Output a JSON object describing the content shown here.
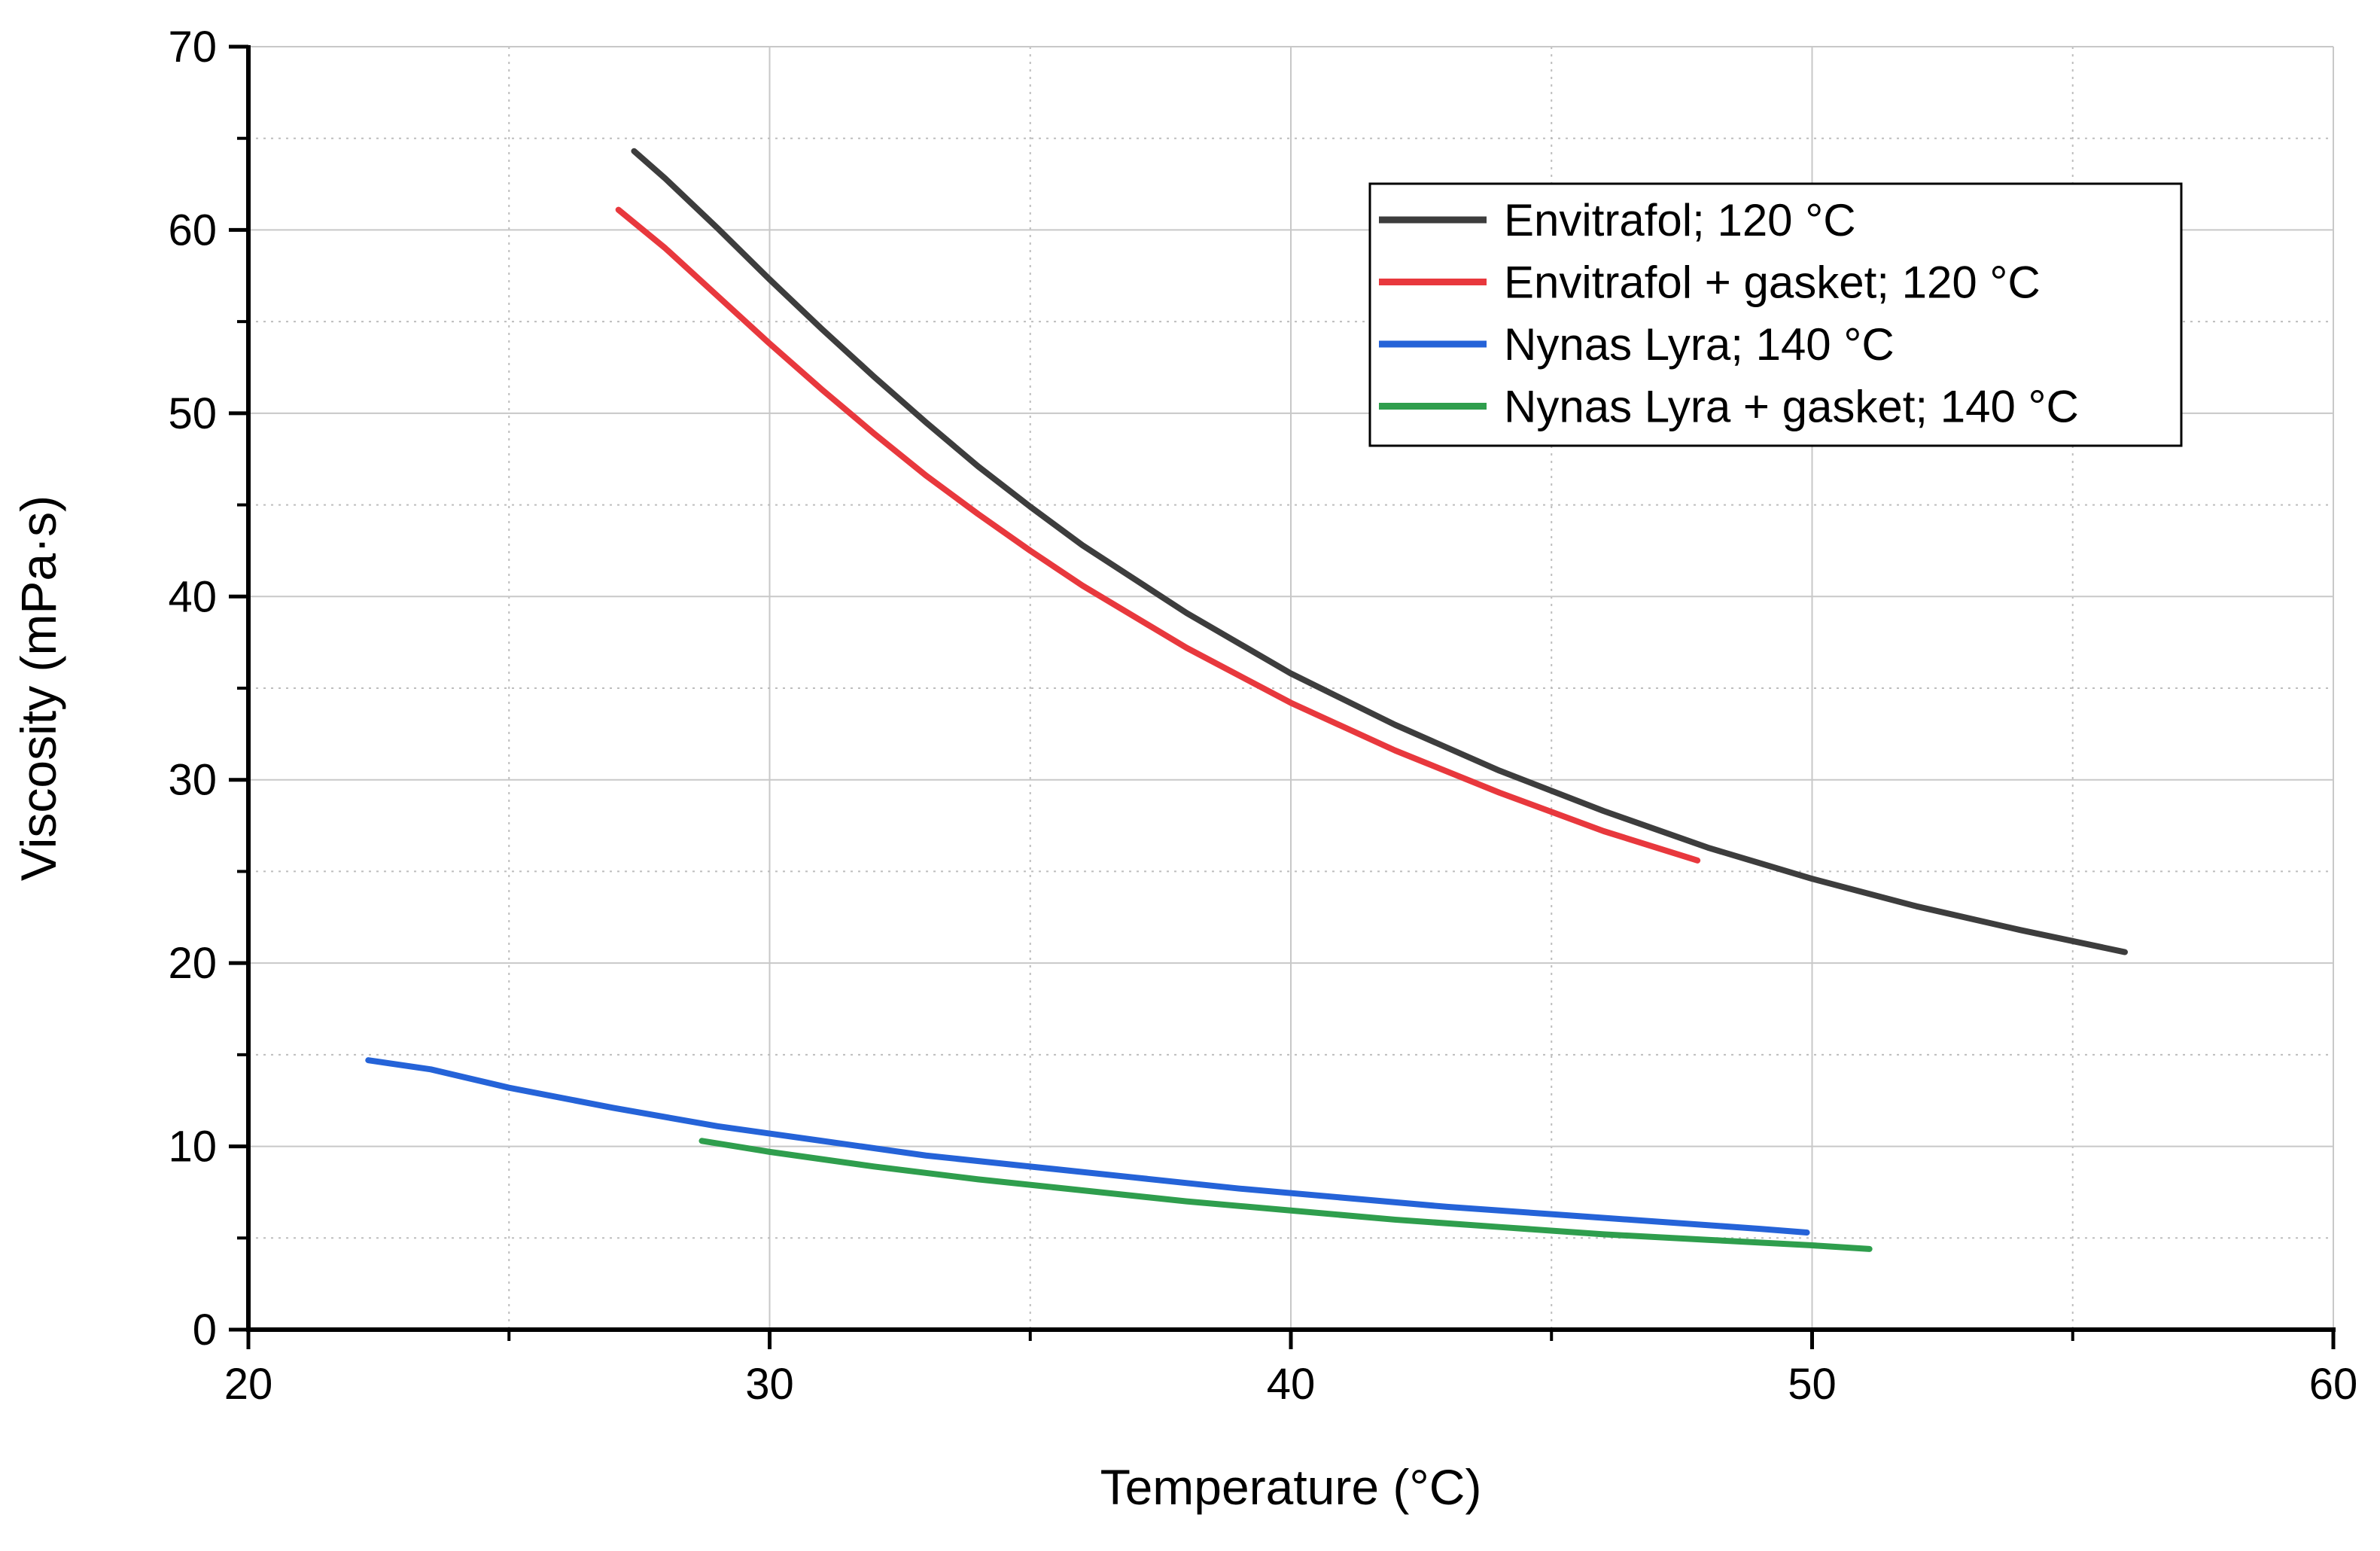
{
  "chart_data": {
    "type": "line",
    "title": "",
    "xlabel": "Temperature (°C)",
    "ylabel": "Viscosity (mPa·s)",
    "xlim": [
      20,
      60
    ],
    "ylim": [
      0,
      70
    ],
    "x_major_ticks": [
      20,
      30,
      40,
      50,
      60
    ],
    "x_minor_ticks": [
      25,
      35,
      45,
      55
    ],
    "y_major_ticks": [
      0,
      10,
      20,
      30,
      40,
      50,
      60,
      70
    ],
    "y_minor_ticks": [
      5,
      15,
      25,
      35,
      45,
      55,
      65
    ],
    "x_tick_labels": [
      "20",
      "30",
      "40",
      "50",
      "60"
    ],
    "y_tick_labels": [
      "0",
      "10",
      "20",
      "30",
      "40",
      "50",
      "60",
      "70"
    ],
    "grid": true,
    "legend_position": "top-right",
    "series": [
      {
        "name": "Envitrafol; 120 °C",
        "color": "#3d3d3d",
        "x": [
          27.4,
          28,
          29,
          30,
          31,
          32,
          33,
          34,
          35,
          36,
          38,
          40,
          42,
          44,
          46,
          48,
          50,
          52,
          54,
          56
        ],
        "y": [
          64.3,
          62.8,
          60.1,
          57.3,
          54.6,
          52.0,
          49.5,
          47.1,
          44.9,
          42.8,
          39.1,
          35.8,
          33.0,
          30.5,
          28.3,
          26.3,
          24.6,
          23.1,
          21.8,
          20.6
        ]
      },
      {
        "name": "Envitrafol + gasket; 120 °C",
        "color": "#e8383d",
        "x": [
          27.1,
          28,
          29,
          30,
          31,
          32,
          33,
          34,
          35,
          36,
          38,
          40,
          42,
          44,
          46,
          47.8
        ],
        "y": [
          61.1,
          59.0,
          56.4,
          53.8,
          51.3,
          48.9,
          46.6,
          44.5,
          42.5,
          40.6,
          37.2,
          34.2,
          31.6,
          29.3,
          27.2,
          25.6
        ]
      },
      {
        "name": "Nynas Lyra; 140 °C",
        "color": "#2563d8",
        "x": [
          22.3,
          23.5,
          25,
          27,
          29,
          31,
          33,
          35,
          37,
          39,
          41,
          43,
          45,
          47,
          49,
          49.9
        ],
        "y": [
          14.7,
          14.2,
          13.2,
          12.1,
          11.1,
          10.3,
          9.5,
          8.9,
          8.3,
          7.7,
          7.2,
          6.7,
          6.3,
          5.9,
          5.5,
          5.3
        ]
      },
      {
        "name": "Nynas Lyra + gasket; 140 °C",
        "color": "#2f9e4d",
        "x": [
          28.7,
          30,
          32,
          34,
          36,
          38,
          40,
          42,
          44,
          46,
          48,
          50,
          51.1
        ],
        "y": [
          10.3,
          9.7,
          8.9,
          8.2,
          7.6,
          7.0,
          6.5,
          6.0,
          5.6,
          5.2,
          4.9,
          4.6,
          4.4
        ]
      }
    ]
  }
}
